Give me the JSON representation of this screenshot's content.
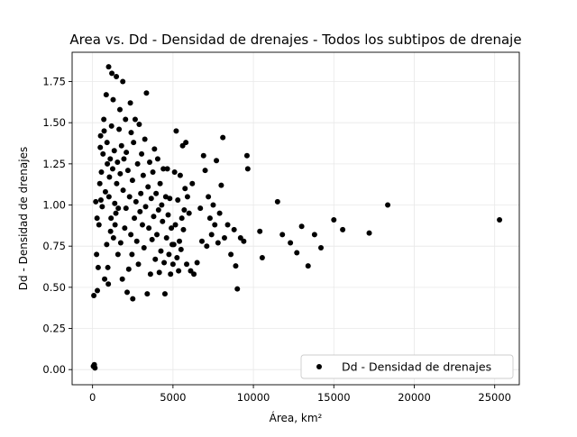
{
  "chart_data": {
    "type": "scatter",
    "title": "Area vs. Dd - Densidad de drenajes - Todos los subtipos de drenaje",
    "xlabel": "Área, km²",
    "ylabel": "Dd - Densidad de drenajes",
    "xlim": [
      -1270,
      26530
    ],
    "ylim": [
      -0.092,
      1.928
    ],
    "x_ticks": [
      {
        "value": 0,
        "label": "0"
      },
      {
        "value": 5000,
        "label": "5000"
      },
      {
        "value": 10000,
        "label": "10000"
      },
      {
        "value": 15000,
        "label": "15000"
      },
      {
        "value": 20000,
        "label": "20000"
      },
      {
        "value": 25000,
        "label": "25000"
      }
    ],
    "y_ticks": [
      {
        "value": 0.0,
        "label": "0.00"
      },
      {
        "value": 0.25,
        "label": "0.25"
      },
      {
        "value": 0.5,
        "label": "0.50"
      },
      {
        "value": 0.75,
        "label": "0.75"
      },
      {
        "value": 1.0,
        "label": "1.00"
      },
      {
        "value": 1.25,
        "label": "1.25"
      },
      {
        "value": 1.5,
        "label": "1.50"
      },
      {
        "value": 1.75,
        "label": "1.75"
      }
    ],
    "grid": true,
    "legend_position": "bottom-right",
    "marker_color": "#000000",
    "series": [
      {
        "name": "Dd - Densidad de drenajes",
        "points": [
          [
            50,
            0.02
          ],
          [
            80,
            0.45
          ],
          [
            110,
            0.03
          ],
          [
            150,
            0.01
          ],
          [
            200,
            1.02
          ],
          [
            250,
            0.7
          ],
          [
            280,
            0.92
          ],
          [
            300,
            0.48
          ],
          [
            350,
            0.62
          ],
          [
            400,
            0.88
          ],
          [
            450,
            1.13
          ],
          [
            480,
            1.35
          ],
          [
            500,
            1.42
          ],
          [
            520,
            1.03
          ],
          [
            550,
            1.2
          ],
          [
            600,
            0.99
          ],
          [
            650,
            1.31
          ],
          [
            700,
            1.52
          ],
          [
            720,
            1.45
          ],
          [
            750,
            0.55
          ],
          [
            800,
            1.08
          ],
          [
            850,
            1.67
          ],
          [
            880,
            0.76
          ],
          [
            900,
            1.38
          ],
          [
            920,
            1.25
          ],
          [
            950,
            0.62
          ],
          [
            980,
            0.52
          ],
          [
            1000,
            1.84
          ],
          [
            1020,
            1.05
          ],
          [
            1050,
            1.17
          ],
          [
            1100,
            1.28
          ],
          [
            1120,
            0.84
          ],
          [
            1150,
            0.92
          ],
          [
            1180,
            1.48
          ],
          [
            1200,
            1.8
          ],
          [
            1250,
            1.22
          ],
          [
            1280,
            1.64
          ],
          [
            1300,
            0.8
          ],
          [
            1350,
            1.33
          ],
          [
            1380,
            1.01
          ],
          [
            1400,
            0.88
          ],
          [
            1450,
            0.95
          ],
          [
            1480,
            1.78
          ],
          [
            1500,
            1.13
          ],
          [
            1550,
            1.26
          ],
          [
            1580,
            0.7
          ],
          [
            1600,
            0.98
          ],
          [
            1650,
            1.46
          ],
          [
            1700,
            1.58
          ],
          [
            1720,
            1.19
          ],
          [
            1750,
            0.77
          ],
          [
            1800,
            1.36
          ],
          [
            1850,
            0.55
          ],
          [
            1880,
            1.75
          ],
          [
            1900,
            1.09
          ],
          [
            1950,
            1.28
          ],
          [
            2000,
            0.86
          ],
          [
            2050,
            1.52
          ],
          [
            2080,
            0.98
          ],
          [
            2100,
            1.32
          ],
          [
            2150,
            0.47
          ],
          [
            2200,
            1.21
          ],
          [
            2250,
            0.61
          ],
          [
            2300,
            1.05
          ],
          [
            2350,
            1.62
          ],
          [
            2380,
            0.82
          ],
          [
            2400,
            1.44
          ],
          [
            2450,
            0.7
          ],
          [
            2480,
            1.15
          ],
          [
            2500,
            0.43
          ],
          [
            2550,
            1.38
          ],
          [
            2600,
            0.92
          ],
          [
            2650,
            1.52
          ],
          [
            2700,
            1.02
          ],
          [
            2750,
            0.78
          ],
          [
            2800,
            1.25
          ],
          [
            2850,
            0.64
          ],
          [
            2900,
            1.49
          ],
          [
            2950,
            0.96
          ],
          [
            3000,
            1.07
          ],
          [
            3050,
            1.31
          ],
          [
            3100,
            0.88
          ],
          [
            3150,
            1.18
          ],
          [
            3200,
            0.74
          ],
          [
            3250,
            1.4
          ],
          [
            3300,
            0.99
          ],
          [
            3350,
            1.68
          ],
          [
            3400,
            0.46
          ],
          [
            3450,
            1.11
          ],
          [
            3500,
            0.86
          ],
          [
            3550,
            1.26
          ],
          [
            3600,
            0.58
          ],
          [
            3650,
            1.04
          ],
          [
            3700,
            0.79
          ],
          [
            3750,
            1.2
          ],
          [
            3800,
            0.93
          ],
          [
            3850,
            1.34
          ],
          [
            3900,
            0.67
          ],
          [
            3950,
            1.07
          ],
          [
            4000,
            0.82
          ],
          [
            4050,
            1.28
          ],
          [
            4100,
            0.97
          ],
          [
            4150,
            0.59
          ],
          [
            4200,
            1.13
          ],
          [
            4250,
            0.72
          ],
          [
            4300,
            1.0
          ],
          [
            4350,
            0.9
          ],
          [
            4400,
            1.22
          ],
          [
            4450,
            0.65
          ],
          [
            4500,
            0.46
          ],
          [
            4550,
            1.05
          ],
          [
            4600,
            0.8
          ],
          [
            4650,
            1.22
          ],
          [
            4700,
            0.94
          ],
          [
            4750,
            0.7
          ],
          [
            4800,
            1.04
          ],
          [
            4850,
            0.58
          ],
          [
            4900,
            0.86
          ],
          [
            4950,
            0.76
          ],
          [
            5000,
            0.64
          ],
          [
            5050,
            0.76
          ],
          [
            5100,
            1.2
          ],
          [
            5150,
            0.88
          ],
          [
            5200,
            1.45
          ],
          [
            5250,
            0.68
          ],
          [
            5300,
            1.03
          ],
          [
            5350,
            0.6
          ],
          [
            5400,
            0.78
          ],
          [
            5450,
            1.18
          ],
          [
            5500,
            0.73
          ],
          [
            5550,
            0.92
          ],
          [
            5600,
            1.36
          ],
          [
            5650,
            0.85
          ],
          [
            5700,
            0.97
          ],
          [
            5750,
            1.1
          ],
          [
            5800,
            1.38
          ],
          [
            5850,
            0.64
          ],
          [
            5900,
            1.05
          ],
          [
            6000,
            0.95
          ],
          [
            6100,
            0.6
          ],
          [
            6200,
            1.13
          ],
          [
            6300,
            0.58
          ],
          [
            6500,
            0.65
          ],
          [
            6700,
            0.98
          ],
          [
            6800,
            0.78
          ],
          [
            6900,
            1.3
          ],
          [
            7000,
            1.21
          ],
          [
            7100,
            0.75
          ],
          [
            7200,
            1.05
          ],
          [
            7300,
            0.92
          ],
          [
            7400,
            0.82
          ],
          [
            7500,
            1.0
          ],
          [
            7600,
            0.88
          ],
          [
            7700,
            1.27
          ],
          [
            7800,
            0.77
          ],
          [
            7900,
            0.95
          ],
          [
            8000,
            1.12
          ],
          [
            8100,
            1.41
          ],
          [
            8200,
            0.8
          ],
          [
            8400,
            0.88
          ],
          [
            8600,
            0.7
          ],
          [
            8800,
            0.85
          ],
          [
            8900,
            0.63
          ],
          [
            9000,
            0.49
          ],
          [
            9200,
            0.8
          ],
          [
            9400,
            0.78
          ],
          [
            9600,
            1.3
          ],
          [
            9650,
            1.22
          ],
          [
            10400,
            0.84
          ],
          [
            10550,
            0.68
          ],
          [
            11500,
            1.02
          ],
          [
            11800,
            0.82
          ],
          [
            12300,
            0.77
          ],
          [
            12700,
            0.71
          ],
          [
            13000,
            0.87
          ],
          [
            13400,
            0.63
          ],
          [
            13800,
            0.82
          ],
          [
            14200,
            0.74
          ],
          [
            15000,
            0.91
          ],
          [
            15550,
            0.85
          ],
          [
            17200,
            0.83
          ],
          [
            18350,
            1.0
          ],
          [
            25300,
            0.91
          ]
        ]
      }
    ]
  }
}
